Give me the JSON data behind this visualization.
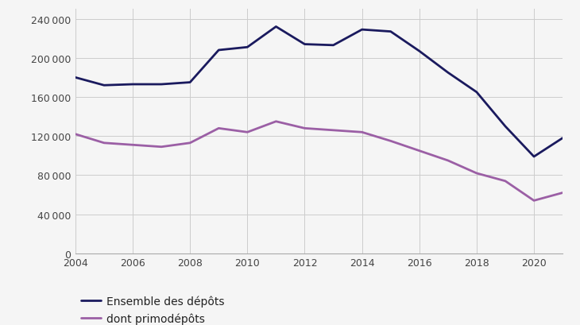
{
  "years": [
    2004,
    2005,
    2006,
    2007,
    2008,
    2009,
    2010,
    2011,
    2012,
    2013,
    2014,
    2015,
    2016,
    2017,
    2018,
    2019,
    2020,
    2021
  ],
  "ensemble": [
    180000,
    172000,
    173000,
    173000,
    175000,
    208000,
    211000,
    232000,
    214000,
    213000,
    229000,
    227000,
    207000,
    185000,
    165000,
    130000,
    99000,
    118000
  ],
  "primodepots": [
    122000,
    113000,
    111000,
    109000,
    113000,
    128000,
    124000,
    135000,
    128000,
    126000,
    124000,
    115000,
    105000,
    95000,
    82000,
    74000,
    54000,
    62000
  ],
  "line1_color": "#1a1a5e",
  "line2_color": "#9b5fa5",
  "legend1": "Ensemble des dépôts",
  "legend2": "dont primodépôts",
  "ylim": [
    0,
    250000
  ],
  "yticks": [
    0,
    40000,
    80000,
    120000,
    160000,
    200000,
    240000
  ],
  "xticks": [
    2004,
    2006,
    2008,
    2010,
    2012,
    2014,
    2016,
    2018,
    2020
  ],
  "grid_color": "#cccccc",
  "bg_color": "#f5f5f5",
  "line_width": 2.0,
  "tick_fontsize": 9,
  "legend_fontsize": 10
}
